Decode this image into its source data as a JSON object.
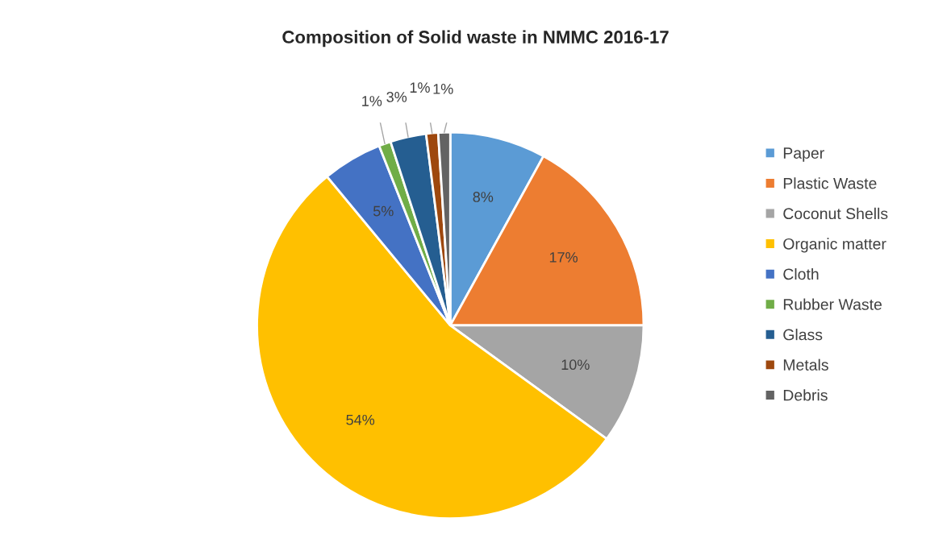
{
  "chart_data": {
    "type": "pie",
    "title": "Composition of Solid waste in NMMC 2016-17",
    "categories": [
      "Paper",
      "Plastic Waste",
      "Coconut Shells",
      "Organic matter",
      "Cloth",
      "Rubber Waste",
      "Glass",
      "Metals",
      "Debris"
    ],
    "values": [
      8,
      17,
      10,
      54,
      5,
      1,
      3,
      1,
      1
    ],
    "colors": [
      "#5b9bd5",
      "#ed7d31",
      "#a5a5a5",
      "#ffc000",
      "#4472c4",
      "#70ad47",
      "#255e91",
      "#9e480e",
      "#636363"
    ],
    "value_labels": [
      "8%",
      "17%",
      "10%",
      "54%",
      "5%",
      "1%",
      "3%",
      "1%",
      "1%"
    ],
    "legend": "right"
  }
}
